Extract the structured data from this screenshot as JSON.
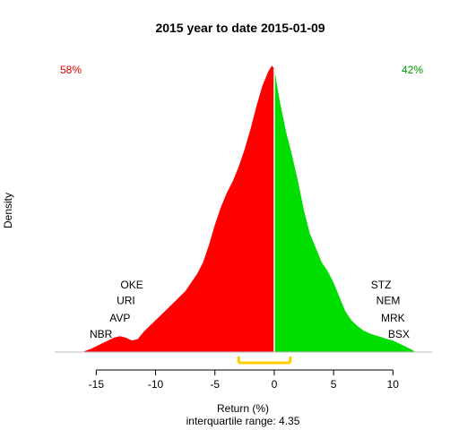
{
  "chart_data": {
    "type": "area",
    "title": "2015  year to date 2015-01-09",
    "xlabel": "Return (%)",
    "subtitle": "interquartile range: 4.35",
    "ylabel": "Density",
    "xlim": [
      -18.5,
      13.3
    ],
    "ylim": [
      0,
      1.0
    ],
    "x_ticks": [
      -15,
      -10,
      -5,
      0,
      5,
      10
    ],
    "x_tick_labels": [
      "-15",
      "-10",
      "-5",
      "0",
      "5",
      "10"
    ],
    "split_at": 0,
    "colors": {
      "negative": "#ff0000",
      "positive": "#00dd00",
      "iqr": "#ffcc00",
      "baseline": "#bbbbbb",
      "negative_pct": "#dd0000",
      "positive_pct": "#009900"
    },
    "negative_share": "58%",
    "positive_share": "42%",
    "iqr_range": [
      -3.0,
      1.35
    ],
    "density": {
      "x": [
        -16.0,
        -15.5,
        -15.0,
        -14.5,
        -14.0,
        -13.5,
        -13.0,
        -12.5,
        -12.0,
        -11.5,
        -11.0,
        -10.5,
        -10.0,
        -9.5,
        -9.0,
        -8.5,
        -8.0,
        -7.5,
        -7.0,
        -6.5,
        -6.0,
        -5.5,
        -5.0,
        -4.5,
        -4.0,
        -3.5,
        -3.0,
        -2.5,
        -2.0,
        -1.5,
        -1.0,
        -0.5,
        -0.2,
        0.0,
        0.2,
        0.5,
        1.0,
        1.5,
        2.0,
        2.5,
        3.0,
        3.5,
        4.0,
        4.5,
        5.0,
        5.5,
        6.0,
        6.5,
        7.0,
        7.5,
        8.0,
        8.5,
        9.0,
        9.5,
        10.0,
        10.5,
        11.0,
        11.5,
        11.8
      ],
      "y": [
        0.003,
        0.01,
        0.02,
        0.03,
        0.04,
        0.05,
        0.055,
        0.05,
        0.04,
        0.045,
        0.07,
        0.09,
        0.11,
        0.13,
        0.15,
        0.17,
        0.19,
        0.21,
        0.24,
        0.27,
        0.31,
        0.37,
        0.44,
        0.5,
        0.55,
        0.59,
        0.64,
        0.7,
        0.77,
        0.85,
        0.92,
        0.97,
        0.99,
        0.98,
        0.93,
        0.86,
        0.76,
        0.68,
        0.59,
        0.49,
        0.41,
        0.36,
        0.31,
        0.28,
        0.24,
        0.19,
        0.14,
        0.11,
        0.09,
        0.075,
        0.065,
        0.058,
        0.052,
        0.045,
        0.04,
        0.03,
        0.02,
        0.01,
        0.003
      ]
    },
    "left_labels": [
      {
        "text": "OKE",
        "x": -12.0,
        "y": 0.22
      },
      {
        "text": "URI",
        "x": -12.5,
        "y": 0.165
      },
      {
        "text": "AVP",
        "x": -13.0,
        "y": 0.105
      },
      {
        "text": "NBR",
        "x": -14.6,
        "y": 0.05
      }
    ],
    "right_labels": [
      {
        "text": "STZ",
        "x": 9.0,
        "y": 0.22
      },
      {
        "text": "NEM",
        "x": 9.6,
        "y": 0.165
      },
      {
        "text": "MRK",
        "x": 10.0,
        "y": 0.105
      },
      {
        "text": "BSX",
        "x": 10.5,
        "y": 0.05
      }
    ]
  }
}
